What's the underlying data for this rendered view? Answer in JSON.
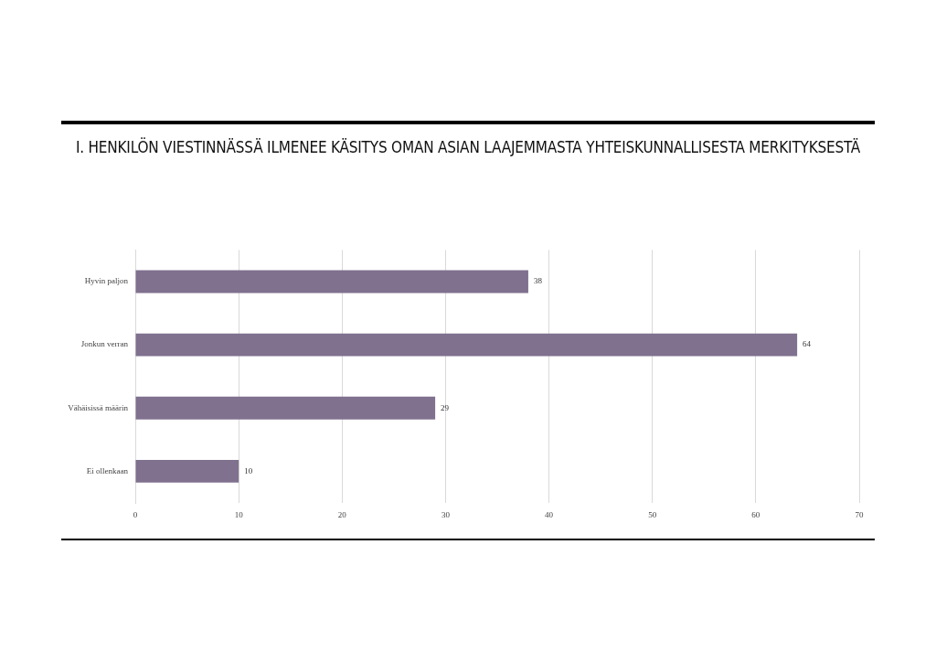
{
  "chart_data": {
    "type": "bar",
    "orientation": "horizontal",
    "title": "I. HENKILÖN VIESTINNÄSSÄ ILMENEE KÄSITYS OMAN ASIAN LAAJEMMASTA YHTEISKUNNALLISESTA MERKITYKSESTÄ",
    "categories": [
      "Hyvin paljon",
      "Jonkun verran",
      "Vähäisissä määrin",
      "Ei ollenkaan"
    ],
    "values": [
      38,
      64,
      29,
      10
    ],
    "color": "#80718f",
    "xlim": [
      0,
      70
    ],
    "xticks": [
      0,
      10,
      20,
      30,
      40,
      50,
      60,
      70
    ],
    "grid": "x",
    "data_labels": true,
    "legend": false
  }
}
